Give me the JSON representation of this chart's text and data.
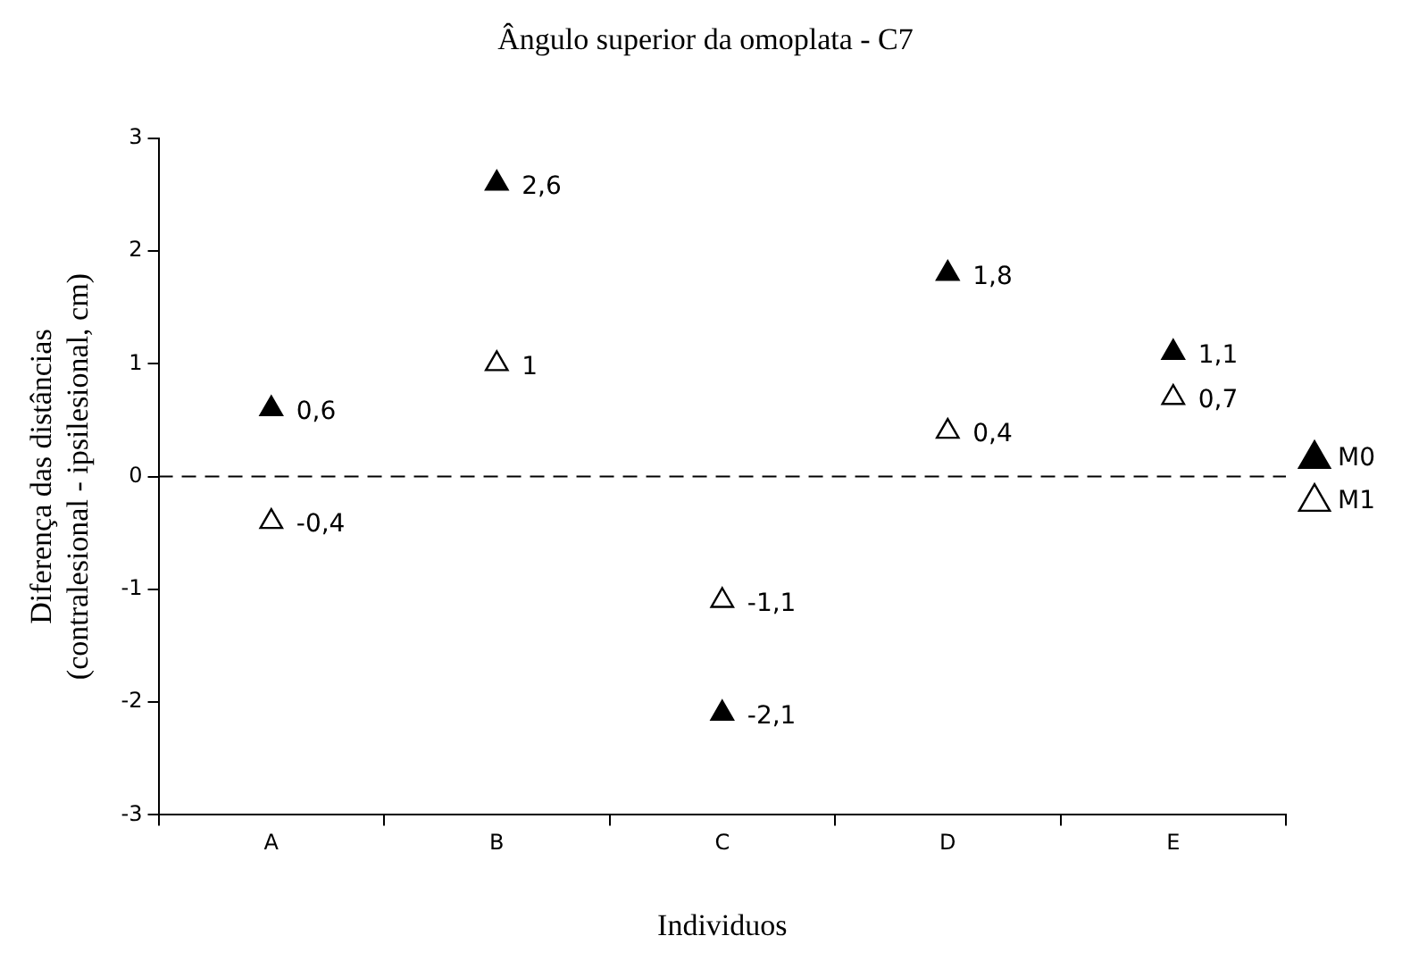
{
  "chart_data": {
    "type": "scatter",
    "title": "Ângulo superior da omoplata - C7",
    "xlabel": "Individuos",
    "ylabel": "Diferença das distâncias\n(contralesional - ipsilesional, cm)",
    "categories": [
      "A",
      "B",
      "C",
      "D",
      "E"
    ],
    "series": [
      {
        "name": "M0",
        "color": "#000000",
        "values": [
          0.6,
          2.6,
          -2.1,
          1.8,
          1.1
        ],
        "value_labels": [
          "0,6",
          "2,6",
          "-2,1",
          "1,8",
          "1,1"
        ]
      },
      {
        "name": "M1",
        "color": "#000000",
        "values": [
          -0.4,
          1,
          -1.1,
          0.4,
          0.7
        ],
        "value_labels": [
          "-0,4",
          "1",
          "-1,1",
          "0,4",
          "0,7"
        ]
      }
    ],
    "ylim": [
      -3,
      3
    ],
    "yticks": [
      -3,
      -2,
      -1,
      0,
      1,
      2,
      3
    ],
    "grid": false,
    "legend": "right",
    "marker": "triangle",
    "ref_lines": [
      {
        "axis": "y",
        "value": 0,
        "line_style": "dashed"
      }
    ]
  }
}
